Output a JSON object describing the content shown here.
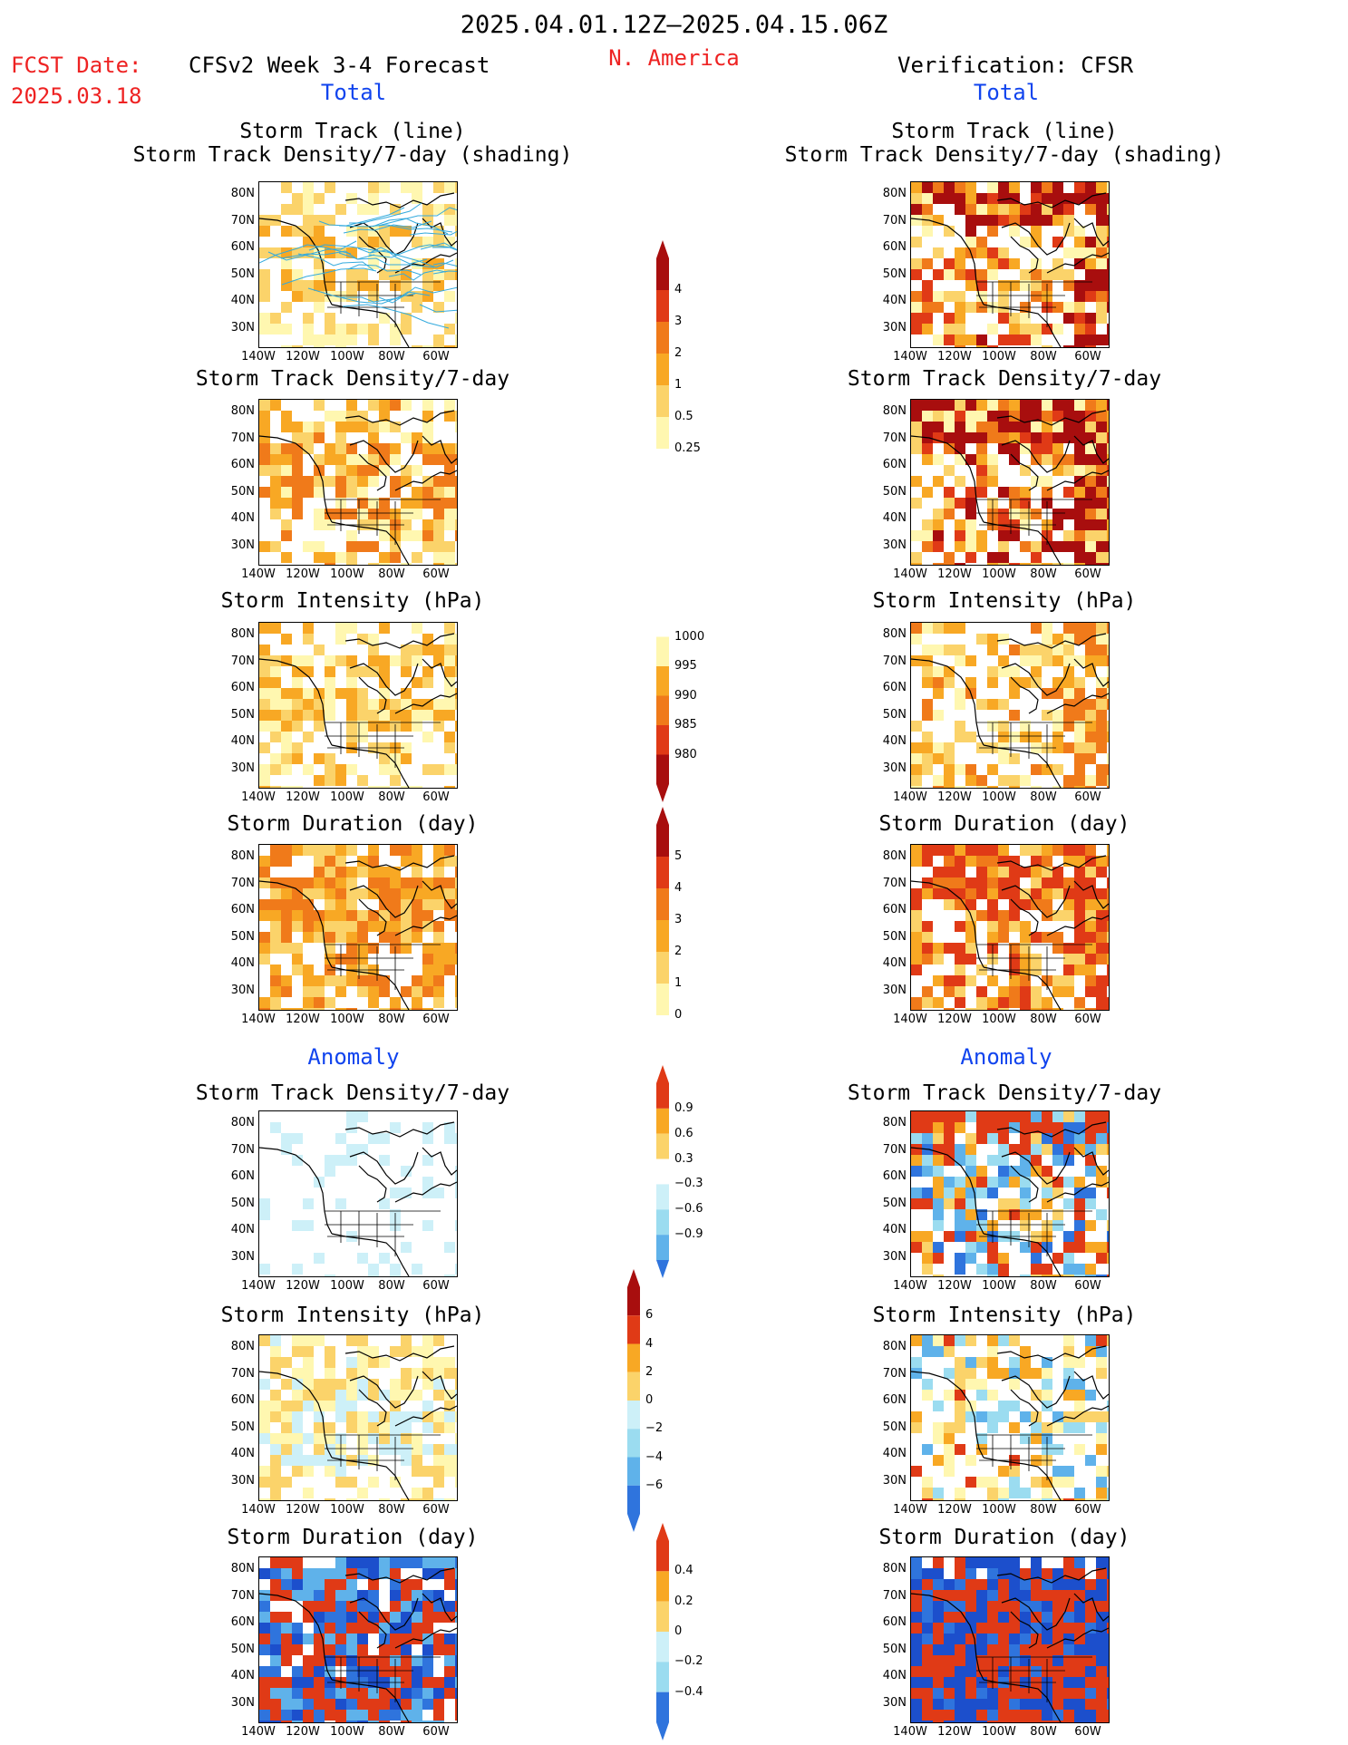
{
  "header": {
    "date_range": "2025.04.01.12Z–2025.04.15.06Z",
    "fcst_label": "FCST Date:",
    "fcst_date": "2025.03.18",
    "model": "CFSv2 Week 3-4 Forecast",
    "region": "N. America",
    "verification": "Verification: CFSR"
  },
  "sections": {
    "total": "Total",
    "anomaly": "Anomaly"
  },
  "panel_titles": {
    "track_line": "Storm Track (line)",
    "track_shading": "Storm Track Density/7-day (shading)",
    "density": "Storm Track Density/7-day",
    "intensity": "Storm Intensity (hPa)",
    "duration": "Storm Duration (day)"
  },
  "axes": {
    "lat_labels": [
      "80N",
      "70N",
      "60N",
      "50N",
      "40N",
      "30N"
    ],
    "lon_labels": [
      "140W",
      "120W",
      "100W",
      "80W",
      "60W"
    ]
  },
  "colorbars": {
    "density_total": [
      "4",
      "3",
      "2",
      "1",
      "0.5",
      "0.25"
    ],
    "intensity_total": [
      "1000",
      "995",
      "990",
      "985",
      "980"
    ],
    "duration_total": [
      "5",
      "4",
      "3",
      "2",
      "1",
      "0"
    ],
    "density_anom": [
      "0.9",
      "0.6",
      "0.3",
      "−0.3",
      "−0.6",
      "−0.9"
    ],
    "intensity_anom": [
      "6",
      "4",
      "2",
      "0",
      "−2",
      "−4",
      "−6"
    ],
    "duration_anom": [
      "0.4",
      "0.2",
      "0",
      "−0.2",
      "−0.4"
    ]
  },
  "colors": {
    "warm": [
      "#fff7b0",
      "#fbd36a",
      "#f8a824",
      "#f07a1a",
      "#e03a16",
      "#a80e0e"
    ],
    "cool": [
      "#cdf0f8",
      "#9bdcf0",
      "#5fb2ea",
      "#2f74dd",
      "#1c4fcc"
    ],
    "track_line": "#33aadd",
    "title_red": "#ee2222",
    "title_blue": "#1144ee"
  }
}
